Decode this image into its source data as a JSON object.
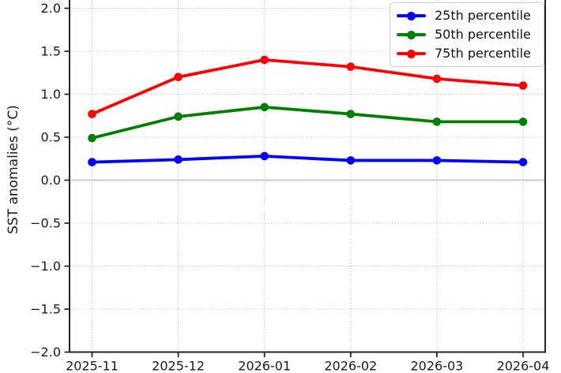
{
  "figure_title": "",
  "accent_colors": {
    "p25": "#0000ff",
    "p50": "#008000",
    "p75": "#ff0000",
    "grid": "#b0b0b0",
    "zero_line": "#d3d3d3",
    "spine": "#262626",
    "text": "#1a1a1a",
    "legend_border": "#cbcbcb"
  },
  "chart_data": {
    "type": "line",
    "title": "",
    "xlabel": "",
    "ylabel": "SST anomalies (°C)",
    "x": [
      "2025-11",
      "2025-12",
      "2026-01",
      "2026-02",
      "2026-03",
      "2026-04"
    ],
    "series": [
      {
        "name": "25th percentile",
        "color": "#0000ff",
        "values": [
          0.21,
          0.24,
          0.28,
          0.23,
          0.23,
          0.21
        ]
      },
      {
        "name": "50th percentile",
        "color": "#008000",
        "values": [
          0.49,
          0.74,
          0.85,
          0.77,
          0.68,
          0.68
        ]
      },
      {
        "name": "75th percentile",
        "color": "#ff0000",
        "values": [
          0.77,
          1.2,
          1.4,
          1.32,
          1.18,
          1.1
        ]
      }
    ],
    "ylim": [
      -2.0,
      2.0
    ],
    "yticks": [
      2.0,
      1.5,
      1.0,
      0.5,
      0.0,
      -0.5,
      -1.0,
      -1.5,
      -2.0
    ],
    "ytick_labels": [
      "2.0",
      "1.5",
      "1.0",
      "0.5",
      "0.0",
      "−0.5",
      "−1.0",
      "−1.5",
      "−2.0"
    ],
    "grid": true,
    "grid_style": "dotted",
    "zero_line_value": 0.0,
    "marker": "o",
    "legend_position": "upper right",
    "legend_entries": [
      "25th percentile",
      "50th percentile",
      "75th percentile"
    ]
  }
}
